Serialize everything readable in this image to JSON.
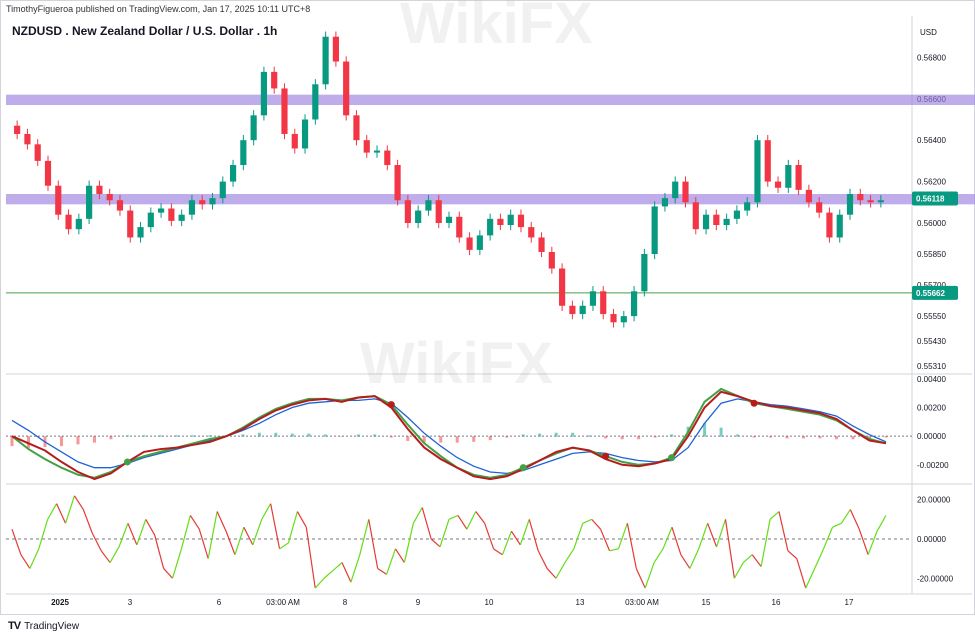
{
  "header": {
    "publisher": "TimothyFigueroa published on TradingView.com, Jan 17, 2025 10:11 UTC+8"
  },
  "title": "NZDUSD . New Zealand Dollar / U.S. Dollar . 1h",
  "currency": "USD",
  "watermark": "WikiFX",
  "footer": {
    "logo": "TV",
    "brand": "TradingView"
  },
  "chart_data": [
    {
      "type": "candlestick",
      "title": "NZDUSD . New Zealand Dollar / U.S. Dollar . 1h",
      "ylim": [
        0.5528,
        0.57
      ],
      "y_ticks": [
        "0.56800",
        "0.56600",
        "0.56400",
        "0.56200",
        "0.56000",
        "0.55850",
        "0.55700",
        "0.55550",
        "0.55430",
        "0.55310"
      ],
      "x_ticks": [
        "2025",
        "3",
        "6",
        "03:00 AM",
        "8",
        "9",
        "10",
        "13",
        "03:00 AM",
        "15",
        "16",
        "17"
      ],
      "price_labels": [
        {
          "value": "0.56118",
          "color": "#089981"
        },
        {
          "value": "0.55662",
          "color": "#089981"
        }
      ],
      "zones": [
        {
          "from": 0.5657,
          "to": 0.5662,
          "color": "#9b7fe0"
        },
        {
          "from": 0.5609,
          "to": 0.5614,
          "color": "#9b7fe0"
        }
      ],
      "horizontal_lines": [
        {
          "y": 0.55662,
          "color": "#43a047"
        }
      ],
      "close_series": [
        0.5643,
        0.5638,
        0.563,
        0.5618,
        0.5604,
        0.5597,
        0.5602,
        0.5618,
        0.5614,
        0.5611,
        0.5606,
        0.5593,
        0.5598,
        0.5605,
        0.5607,
        0.5601,
        0.5604,
        0.5611,
        0.5609,
        0.5612,
        0.562,
        0.5628,
        0.564,
        0.5652,
        0.5673,
        0.5665,
        0.5643,
        0.5636,
        0.565,
        0.5667,
        0.569,
        0.5678,
        0.5652,
        0.564,
        0.5634,
        0.5635,
        0.5628,
        0.5611,
        0.56,
        0.5606,
        0.5611,
        0.56,
        0.5603,
        0.5593,
        0.5587,
        0.5594,
        0.5602,
        0.5599,
        0.5604,
        0.5598,
        0.5593,
        0.5586,
        0.5578,
        0.556,
        0.5556,
        0.556,
        0.5567,
        0.5556,
        0.5552,
        0.5555,
        0.5567,
        0.5585,
        0.5608,
        0.5612,
        0.562,
        0.561,
        0.5597,
        0.5604,
        0.5599,
        0.5602,
        0.5606,
        0.561,
        0.564,
        0.562,
        0.5617,
        0.5628,
        0.5616,
        0.561,
        0.5605,
        0.5593,
        0.5604,
        0.5614,
        0.5611,
        0.561,
        0.5611
      ]
    },
    {
      "type": "line",
      "name": "macd",
      "ylim": [
        -0.0032,
        0.0042
      ],
      "y_ticks": [
        "0.00400",
        "0.00200",
        "0.00000",
        "-0.00200"
      ],
      "series": [
        {
          "color": "#b71c1c",
          "values": [
            0.0,
            -0.0005,
            -0.001,
            -0.0018,
            -0.0025,
            -0.003,
            -0.0026,
            -0.0018,
            -0.0011,
            -0.0009,
            -0.0008,
            -0.0006,
            -0.0004,
            0.0,
            0.0005,
            0.0012,
            0.0018,
            0.0022,
            0.0025,
            0.0026,
            0.0024,
            0.0027,
            0.0028,
            0.002,
            0.0005,
            -0.0008,
            -0.0016,
            -0.0022,
            -0.0028,
            -0.003,
            -0.0028,
            -0.0023,
            -0.0017,
            -0.0011,
            -0.0008,
            -0.001,
            -0.0016,
            -0.002,
            -0.0021,
            -0.0019,
            -0.0016,
            0.0,
            0.002,
            0.0031,
            0.0028,
            0.0024,
            0.0021,
            0.002,
            0.0018,
            0.0016,
            0.0012,
            0.0004,
            -0.0003,
            -0.0005
          ]
        },
        {
          "color": "#43a047",
          "values": [
            0.0,
            -0.0009,
            -0.0016,
            -0.0022,
            -0.0027,
            -0.0029,
            -0.0025,
            -0.0018,
            -0.0014,
            -0.0011,
            -0.0008,
            -0.0005,
            -0.0002,
            0.0,
            0.0006,
            0.0013,
            0.0019,
            0.0023,
            0.0026,
            0.0026,
            0.0025,
            0.0027,
            0.0028,
            0.0022,
            0.0008,
            -0.0005,
            -0.0014,
            -0.0022,
            -0.0027,
            -0.0029,
            -0.0027,
            -0.0022,
            -0.0017,
            -0.0012,
            -0.0008,
            -0.001,
            -0.0014,
            -0.0018,
            -0.002,
            -0.0019,
            -0.0015,
            0.0003,
            0.0024,
            0.0033,
            0.0028,
            0.0023,
            0.0021,
            0.0019,
            0.0017,
            0.0015,
            0.0011,
            0.0004,
            -0.0002,
            -0.0005
          ]
        },
        {
          "color": "#1e63d6",
          "values": [
            0.0011,
            0.0004,
            -0.0004,
            -0.0011,
            -0.0018,
            -0.0022,
            -0.0022,
            -0.0019,
            -0.0015,
            -0.0012,
            -0.0009,
            -0.0006,
            -0.0003,
            0.0,
            0.0004,
            0.0009,
            0.0015,
            0.002,
            0.0023,
            0.0024,
            0.0025,
            0.0025,
            0.0026,
            0.0023,
            0.0013,
            0.0002,
            -0.0007,
            -0.0015,
            -0.0021,
            -0.0025,
            -0.0026,
            -0.0024,
            -0.002,
            -0.0016,
            -0.0012,
            -0.0011,
            -0.0012,
            -0.0015,
            -0.0017,
            -0.0018,
            -0.0017,
            -0.0008,
            0.0009,
            0.0023,
            0.0026,
            0.0024,
            0.0022,
            0.0021,
            0.0019,
            0.0017,
            0.0014,
            0.0007,
            0.0001,
            -0.0004
          ]
        }
      ]
    },
    {
      "type": "line",
      "name": "oscillator",
      "ylim": [
        -27,
        27
      ],
      "y_ticks": [
        "20.00000",
        "0.00000",
        "-20.00000"
      ],
      "series": [
        {
          "color": "#e53935",
          "values": [
            5,
            -8,
            -15,
            -5,
            10,
            18,
            8,
            22,
            15,
            3,
            -6,
            -12,
            -4,
            8,
            -3,
            10,
            2,
            -15,
            -20,
            -5,
            12,
            5,
            -10,
            14,
            4,
            -8,
            6,
            -3,
            10,
            18,
            -5,
            -2,
            14,
            6,
            -25,
            -20,
            -16,
            -12,
            -22,
            -8,
            10,
            -15,
            -18,
            -5,
            -12,
            8,
            16,
            0,
            -4,
            10,
            12,
            5,
            14,
            8,
            -5,
            -8,
            4,
            -3,
            10,
            -6,
            -15,
            -20,
            -12,
            -5,
            8,
            10,
            5,
            -6,
            -5,
            8,
            -15,
            -25,
            -12,
            -5,
            6,
            -8,
            -15,
            -5,
            8,
            -4,
            10,
            -20,
            -12,
            -8,
            -14,
            10,
            14,
            -6,
            -10,
            -25,
            -15,
            -5,
            6,
            8,
            15,
            5,
            -8,
            4,
            12
          ]
        },
        {
          "color": "#64dd17",
          "values": [
            5,
            -8,
            -15,
            -5,
            10,
            18,
            8,
            22,
            15,
            3,
            -6,
            -12,
            -4,
            8,
            -3,
            10,
            2,
            -15,
            -20,
            -5,
            12,
            5,
            -10,
            14,
            4,
            -8,
            6,
            -3,
            10,
            18,
            -5,
            -2,
            14,
            6,
            -25,
            -20,
            -16,
            -12,
            -22,
            -8,
            10,
            -15,
            -18,
            -5,
            -12,
            8,
            16,
            0,
            -4,
            10,
            12,
            5,
            14,
            8,
            -5,
            -8,
            4,
            -3,
            10,
            -6,
            -15,
            -20,
            -12,
            -5,
            8,
            10,
            5,
            -6,
            -5,
            8,
            -15,
            -25,
            -12,
            -5,
            6,
            -8,
            -15,
            -5,
            8,
            -4,
            10,
            -20,
            -12,
            -8,
            -14,
            10,
            14,
            -6,
            -10,
            -25,
            -15,
            -5,
            6,
            8,
            15,
            5,
            -8,
            4,
            12
          ]
        }
      ]
    }
  ]
}
